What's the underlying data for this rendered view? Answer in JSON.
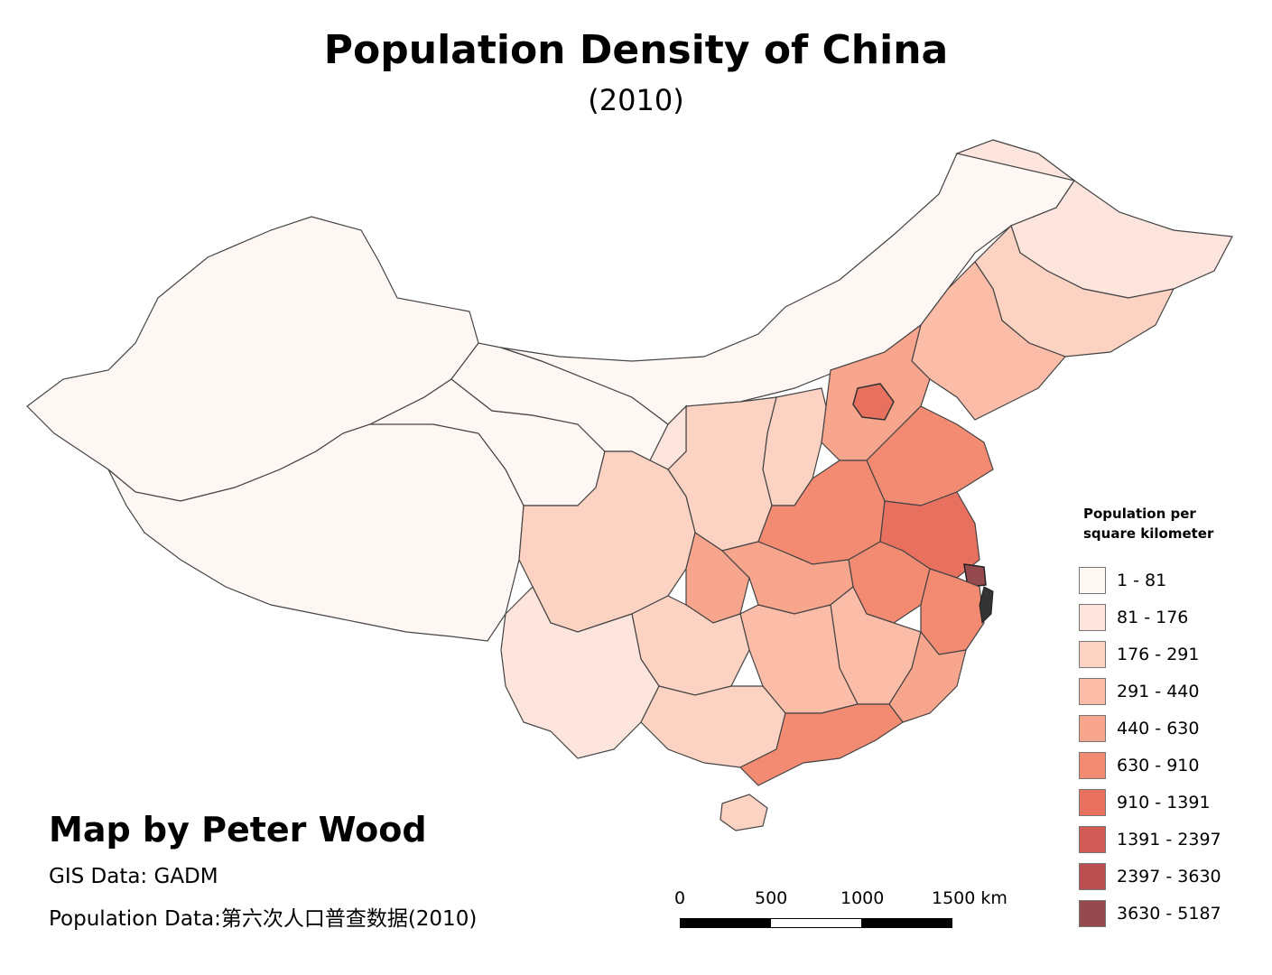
{
  "map": {
    "title": "Population Density of China",
    "subtitle": "(2010)",
    "legend": {
      "title_line1": "Population per",
      "title_line2": "square kilometer",
      "classes": [
        {
          "label": "1 - 81",
          "color": "#fff7f3"
        },
        {
          "label": "81 - 176",
          "color": "#fde4dc"
        },
        {
          "label": "176 - 291",
          "color": "#fcd2c3"
        },
        {
          "label": "291 - 440",
          "color": "#fbbca8"
        },
        {
          "label": "440 - 630",
          "color": "#f8a58d"
        },
        {
          "label": "630 - 910",
          "color": "#f38b72"
        },
        {
          "label": "910 - 1391",
          "color": "#e8705f"
        },
        {
          "label": "1391 - 2397",
          "color": "#d35b57"
        },
        {
          "label": "2397 - 3630",
          "color": "#bb4e51"
        },
        {
          "label": "3630 - 5187",
          "color": "#954a4f"
        }
      ]
    },
    "credit": "Map by Peter Wood",
    "source_gis": "GIS Data: GADM",
    "source_population": "Population Data:第六次人口普查数据(2010)",
    "scale": {
      "labels": [
        "0",
        "500",
        "1000",
        "1500 km"
      ],
      "segment_colors": [
        "#000000",
        "#ffffff",
        "#000000"
      ]
    }
  }
}
